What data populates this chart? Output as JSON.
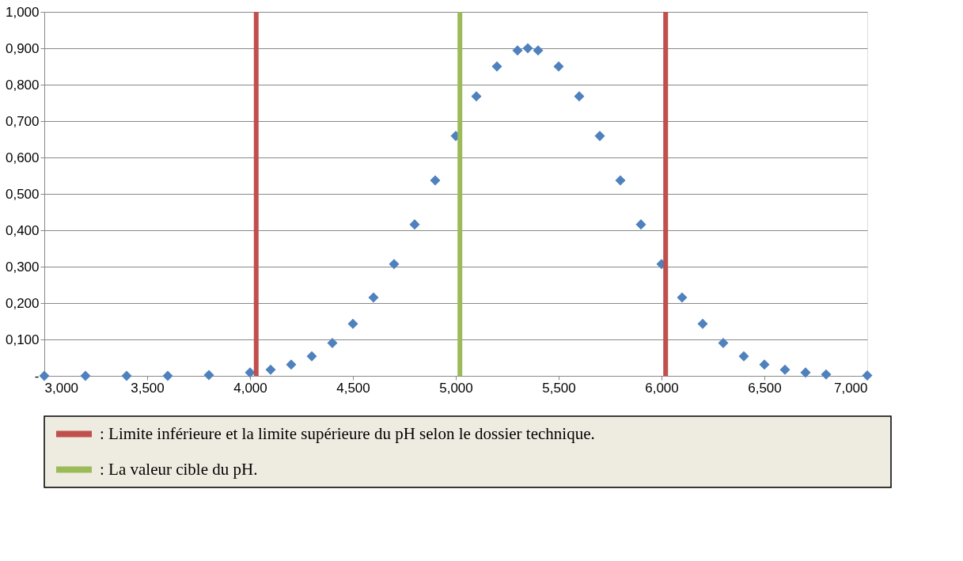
{
  "chart_data": {
    "type": "scatter",
    "marker": "diamond",
    "legend": "bottom",
    "grid": "y",
    "x": [
      3.0,
      3.2,
      3.4,
      3.6,
      3.8,
      4.0,
      4.1,
      4.2,
      4.3,
      4.4,
      4.5,
      4.6,
      4.7,
      4.8,
      4.9,
      5.0,
      5.1,
      5.2,
      5.3,
      5.35,
      5.4,
      5.5,
      5.6,
      5.7,
      5.8,
      5.9,
      6.0,
      6.1,
      6.2,
      6.3,
      6.4,
      6.5,
      6.6,
      6.7,
      6.8,
      7.0
    ],
    "series": [
      {
        "color": "#4f81bd",
        "values": [
          0.0,
          0.0,
          0.0,
          0.0,
          0.002,
          0.009,
          0.017,
          0.031,
          0.054,
          0.09,
          0.143,
          0.215,
          0.307,
          0.416,
          0.537,
          0.659,
          0.768,
          0.85,
          0.894,
          0.9,
          0.894,
          0.85,
          0.768,
          0.659,
          0.537,
          0.416,
          0.307,
          0.215,
          0.143,
          0.09,
          0.054,
          0.031,
          0.017,
          0.009,
          0.004,
          0.001
        ]
      }
    ],
    "xlim": [
      3.0,
      7.0
    ],
    "xticks": [
      {
        "value": 3.0,
        "label": "3,000"
      },
      {
        "value": 3.5,
        "label": "3,500"
      },
      {
        "value": 4.0,
        "label": "4,000"
      },
      {
        "value": 4.5,
        "label": "4,500"
      },
      {
        "value": 5.0,
        "label": "5,000"
      },
      {
        "value": 5.5,
        "label": "5,500"
      },
      {
        "value": 6.0,
        "label": "6,000"
      },
      {
        "value": 6.5,
        "label": "6,500"
      },
      {
        "value": 7.0,
        "label": "7,000"
      }
    ],
    "ylim": [
      0,
      1.0
    ],
    "yticks": [
      {
        "value": 0,
        "label": "-"
      },
      {
        "value": 0.1,
        "label": "0,100"
      },
      {
        "value": 0.2,
        "label": "0,200"
      },
      {
        "value": 0.3,
        "label": "0,300"
      },
      {
        "value": 0.4,
        "label": "0,400"
      },
      {
        "value": 0.5,
        "label": "0,500"
      },
      {
        "value": 0.6,
        "label": "0,600"
      },
      {
        "value": 0.7,
        "label": "0,700"
      },
      {
        "value": 0.8,
        "label": "0,800"
      },
      {
        "value": 0.9,
        "label": "0,900"
      },
      {
        "value": 1.0,
        "label": "1,000"
      }
    ],
    "ref_lines": [
      {
        "axis": "x",
        "value": 4.03,
        "color": "#c0504d",
        "label": ": Limite inférieure et la limite supérieure du pH selon le dossier technique."
      },
      {
        "axis": "x",
        "value": 6.02,
        "color": "#c0504d"
      },
      {
        "axis": "x",
        "value": 5.02,
        "color": "#9bbb59",
        "label": ": La valeur cible du pH."
      }
    ]
  }
}
